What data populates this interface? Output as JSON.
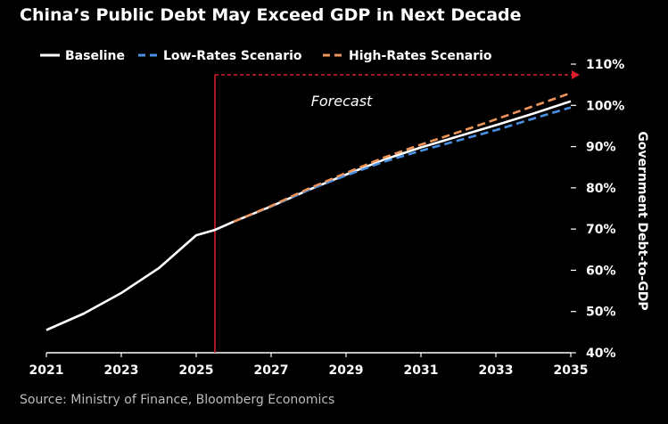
{
  "title": "China’s Public Debt May Exceed GDP in Next Decade",
  "source": "Source: Ministry of Finance, Bloomberg Economics",
  "chart_data": {
    "type": "line",
    "title": "China’s Public Debt May Exceed GDP in Next Decade",
    "xlabel": "",
    "ylabel": "Government Debt-to-GDP",
    "xlim": [
      2021,
      2035
    ],
    "ylim": [
      40,
      110
    ],
    "x_ticks": [
      2021,
      2023,
      2025,
      2027,
      2029,
      2031,
      2033,
      2035
    ],
    "y_ticks": [
      40,
      50,
      60,
      70,
      80,
      90,
      100,
      110
    ],
    "y_tick_format": "%",
    "y_axis_side": "right",
    "grid": false,
    "legend_position": "top-left",
    "annotation": "Forecast",
    "forecast_start": 2025.5,
    "series": [
      {
        "name": "Baseline",
        "color": "#ffffff",
        "dash": "solid",
        "points": [
          [
            2021,
            45.5
          ],
          [
            2022,
            49.5
          ],
          [
            2023,
            54.5
          ],
          [
            2024,
            60.5
          ],
          [
            2025,
            68.5
          ],
          [
            2025.5,
            69.8
          ],
          [
            2026,
            71.8
          ],
          [
            2027,
            75.5
          ],
          [
            2028,
            79.5
          ],
          [
            2029,
            83.2
          ],
          [
            2030,
            86.8
          ],
          [
            2031,
            89.8
          ],
          [
            2032,
            92.5
          ],
          [
            2033,
            95.2
          ],
          [
            2034,
            98.0
          ],
          [
            2035,
            101.0
          ]
        ]
      },
      {
        "name": "Low-Rates Scenario",
        "color": "#4a90e2",
        "dash": "dashed",
        "points": [
          [
            2026,
            71.8
          ],
          [
            2027,
            75.5
          ],
          [
            2028,
            79.5
          ],
          [
            2029,
            83.0
          ],
          [
            2030,
            86.3
          ],
          [
            2031,
            89.0
          ],
          [
            2032,
            91.5
          ],
          [
            2033,
            94.0
          ],
          [
            2034,
            96.8
          ],
          [
            2035,
            99.5
          ]
        ]
      },
      {
        "name": "High-Rates Scenario",
        "color": "#f0955a",
        "dash": "dashed",
        "points": [
          [
            2026,
            71.8
          ],
          [
            2027,
            75.6
          ],
          [
            2028,
            79.8
          ],
          [
            2029,
            83.6
          ],
          [
            2030,
            87.3
          ],
          [
            2031,
            90.5
          ],
          [
            2032,
            93.5
          ],
          [
            2033,
            96.6
          ],
          [
            2034,
            99.8
          ],
          [
            2035,
            103.0
          ]
        ]
      }
    ],
    "forecast_marker_color": "#d91e2e"
  }
}
